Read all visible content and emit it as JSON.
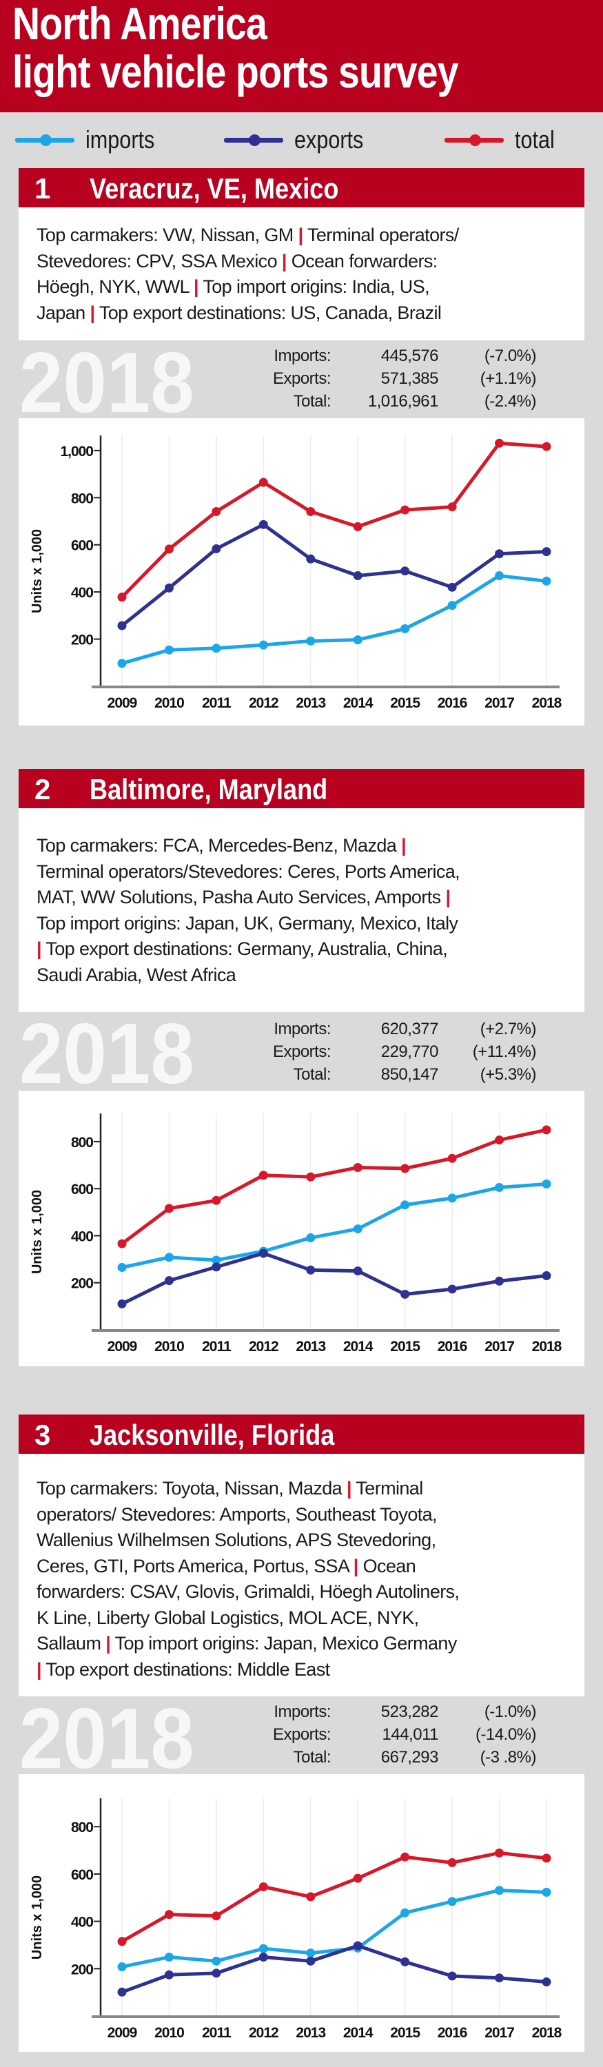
{
  "title": {
    "line1": "North America",
    "line2": "light vehicle ports survey"
  },
  "legend": [
    {
      "label": "imports",
      "color": "#1ba6e8"
    },
    {
      "label": "exports",
      "color": "#2e3192"
    },
    {
      "label": "total",
      "color": "#d7182a"
    }
  ],
  "colors": {
    "brand_red": "#b8001f",
    "separator": "#d7182a",
    "background": "#dadada"
  },
  "sections": [
    {
      "number": "1",
      "name": "Veracruz, VE, Mexico",
      "info_lines": [
        "Top carmakers: VW, Nissan, GM | Terminal operators/",
        "Stevedores: CPV, SSA Mexico | Ocean forwarders:",
        "Höegh, NYK, WWL | Top import origins: India, US,",
        "Japan | Top export destinations: US, Canada, Brazil"
      ],
      "year": "2018",
      "stats": [
        {
          "label": "Imports:",
          "value": "445,576",
          "change": "(-7.0%)"
        },
        {
          "label": "Exports:",
          "value": "571,385",
          "change": "(+1.1%)"
        },
        {
          "label": "Total:",
          "value": "1,016,961",
          "change": "(-2.4%)"
        }
      ],
      "chart_data": {
        "type": "line",
        "categories": [
          "2009",
          "2010",
          "2011",
          "2012",
          "2013",
          "2014",
          "2015",
          "2016",
          "2017",
          "2018"
        ],
        "ylabel": "Units x 1,000",
        "ylim": [
          0,
          1064
        ],
        "yticks": [
          200,
          400,
          600,
          800,
          1000
        ],
        "ytick_labels": [
          "200",
          "400",
          "600",
          "800",
          "1,000"
        ],
        "grid": "vertical",
        "series": [
          {
            "name": "imports",
            "color": "#1ba6e8",
            "values": [
              97,
              154,
              161,
              175,
              192,
              197,
              244,
              343,
              469,
              446
            ]
          },
          {
            "name": "exports",
            "color": "#2e3192",
            "values": [
              257,
              417,
              583,
              686,
              540,
              469,
              489,
              420,
              562,
              571
            ]
          },
          {
            "name": "total",
            "color": "#d7182a",
            "values": [
              378,
              582,
              741,
              865,
              741,
              677,
              748,
              761,
              1031,
              1017
            ]
          }
        ]
      }
    },
    {
      "number": "2",
      "name": "Baltimore, Maryland",
      "info_lines": [
        "Top carmakers: FCA, Mercedes-Benz, Mazda |",
        "Terminal operators/Stevedores: Ceres, Ports America,",
        "MAT, WW Solutions, Pasha Auto Services, Amports |",
        "Top import origins: Japan, UK, Germany, Mexico, Italy",
        "| Top export destinations: Germany, Australia, China,",
        "Saudi Arabia, West Africa"
      ],
      "year": "2018",
      "stats": [
        {
          "label": "Imports:",
          "value": "620,377",
          "change": "(+2.7%)"
        },
        {
          "label": "Exports:",
          "value": "229,770",
          "change": "(+11.4%)"
        },
        {
          "label": "Total:",
          "value": "850,147",
          "change": "(+5.3%)"
        }
      ],
      "chart_data": {
        "type": "line",
        "categories": [
          "2009",
          "2010",
          "2011",
          "2012",
          "2013",
          "2014",
          "2015",
          "2016",
          "2017",
          "2018"
        ],
        "ylabel": "Units x 1,000",
        "ylim": [
          0,
          920
        ],
        "yticks": [
          200,
          400,
          600,
          800
        ],
        "ytick_labels": [
          "200",
          "400",
          "600",
          "800"
        ],
        "grid": "vertical",
        "series": [
          {
            "name": "imports",
            "color": "#1ba6e8",
            "values": [
              265,
              308,
              296,
              334,
              391,
              429,
              531,
              560,
              605,
              620
            ]
          },
          {
            "name": "exports",
            "color": "#2e3192",
            "values": [
              110,
              209,
              267,
              325,
              254,
              250,
              151,
              173,
              207,
              230
            ]
          },
          {
            "name": "total",
            "color": "#d7182a",
            "values": [
              366,
              516,
              550,
              657,
              650,
              690,
              686,
              729,
              807,
              850
            ]
          }
        ]
      }
    },
    {
      "number": "3",
      "name": "Jacksonville, Florida",
      "info_lines": [
        "Top carmakers: Toyota, Nissan, Mazda | Terminal",
        "operators/ Stevedores: Amports, Southeast Toyota,",
        "Wallenius Wilhelmsen Solutions, APS Stevedoring,",
        "Ceres, GTI, Ports America, Portus, SSA | Ocean",
        "forwarders: CSAV, Glovis, Grimaldi, Höegh Autoliners,",
        "K Line, Liberty Global Logistics, MOL ACE, NYK,",
        "Sallaum | Top import origins: Japan, Mexico Germany",
        "| Top export destinations: Middle East"
      ],
      "year": "2018",
      "stats": [
        {
          "label": "Imports:",
          "value": "523,282",
          "change": "(-1.0%)"
        },
        {
          "label": "Exports:",
          "value": "144,011",
          "change": "(-14.0%)"
        },
        {
          "label": "Total:",
          "value": "667,293",
          "change": "(-3 .8%)"
        }
      ],
      "chart_data": {
        "type": "line",
        "categories": [
          "2009",
          "2010",
          "2011",
          "2012",
          "2013",
          "2014",
          "2015",
          "2016",
          "2017",
          "2018"
        ],
        "ylabel": "Units x 1,000",
        "ylim": [
          0,
          920
        ],
        "yticks": [
          200,
          400,
          600,
          800
        ],
        "ytick_labels": [
          "200",
          "400",
          "600",
          "800"
        ],
        "grid": "vertical",
        "series": [
          {
            "name": "imports",
            "color": "#1ba6e8",
            "values": [
              208,
              249,
              232,
              285,
              266,
              287,
              436,
              484,
              531,
              523
            ]
          },
          {
            "name": "exports",
            "color": "#2e3192",
            "values": [
              101,
              174,
              181,
              249,
              232,
              297,
              229,
              169,
              161,
              144
            ]
          },
          {
            "name": "total",
            "color": "#d7182a",
            "values": [
              315,
              429,
              423,
              546,
              504,
              582,
              672,
              648,
              689,
              667
            ]
          }
        ]
      }
    }
  ]
}
